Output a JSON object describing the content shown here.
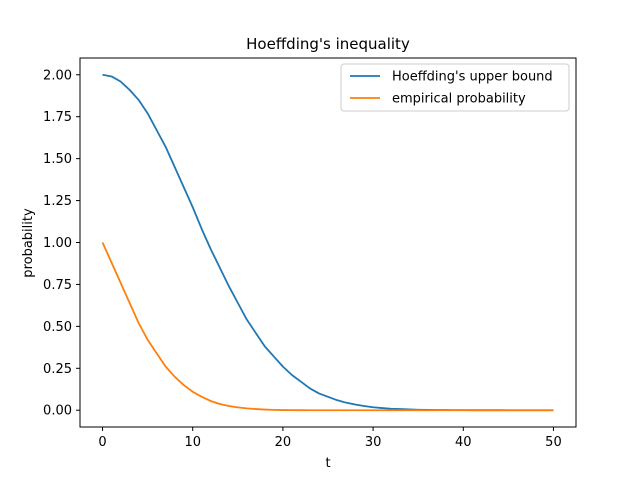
{
  "chart_data": {
    "type": "line",
    "title": "Hoeffding's inequality",
    "xlabel": "t",
    "ylabel": "probability",
    "xlim": [
      -2.5,
      52.5
    ],
    "ylim": [
      -0.1,
      2.1
    ],
    "xticks": [
      0,
      10,
      20,
      30,
      40,
      50
    ],
    "xtick_labels": [
      "0",
      "10",
      "20",
      "30",
      "40",
      "50"
    ],
    "yticks": [
      0,
      0.25,
      0.5,
      0.75,
      1.0,
      1.25,
      1.5,
      1.75,
      2.0
    ],
    "ytick_labels": [
      "0.00",
      "0.25",
      "0.50",
      "0.75",
      "1.00",
      "1.25",
      "1.50",
      "1.75",
      "2.00"
    ],
    "grid": false,
    "legend_position": "top-right",
    "x": [
      0,
      1,
      2,
      3,
      4,
      5,
      6,
      7,
      8,
      9,
      10,
      11,
      12,
      13,
      14,
      15,
      16,
      17,
      18,
      19,
      20,
      21,
      22,
      23,
      24,
      25,
      26,
      27,
      28,
      29,
      30,
      31,
      32,
      33,
      34,
      35,
      36,
      37,
      38,
      39,
      40,
      41,
      42,
      43,
      44,
      45,
      46,
      47,
      48,
      49,
      50
    ],
    "series": [
      {
        "name": "Hoeffding's upper bound",
        "color": "#1f77b4",
        "values": [
          2.0,
          1.99,
          1.96,
          1.91,
          1.85,
          1.77,
          1.67,
          1.57,
          1.45,
          1.33,
          1.21,
          1.08,
          0.96,
          0.85,
          0.74,
          0.64,
          0.54,
          0.46,
          0.38,
          0.32,
          0.26,
          0.21,
          0.17,
          0.13,
          0.1,
          0.08,
          0.06,
          0.045,
          0.034,
          0.025,
          0.018,
          0.013,
          0.009,
          0.007,
          0.005,
          0.003,
          0.002,
          0.0015,
          0.001,
          0.0007,
          0.0005,
          0.0003,
          0.0002,
          0.0001,
          0.0001,
          0.0,
          0.0,
          0.0,
          0.0,
          0.0,
          0.0
        ]
      },
      {
        "name": "empirical probability",
        "color": "#ff7f0e",
        "values": [
          1.0,
          0.88,
          0.76,
          0.64,
          0.52,
          0.42,
          0.34,
          0.26,
          0.2,
          0.15,
          0.11,
          0.08,
          0.055,
          0.037,
          0.025,
          0.017,
          0.011,
          0.007,
          0.004,
          0.002,
          0.001,
          0.0005,
          0.0003,
          0.0,
          0.0,
          0.0,
          0.0,
          0.0,
          0.0,
          0.0,
          0.0,
          0.0,
          0.0,
          0.0,
          0.0,
          0.0,
          0.0,
          0.0,
          0.0,
          0.0,
          0.0,
          0.0,
          0.0,
          0.0,
          0.0,
          0.0,
          0.0,
          0.0,
          0.0,
          0.0,
          0.0
        ]
      }
    ]
  }
}
